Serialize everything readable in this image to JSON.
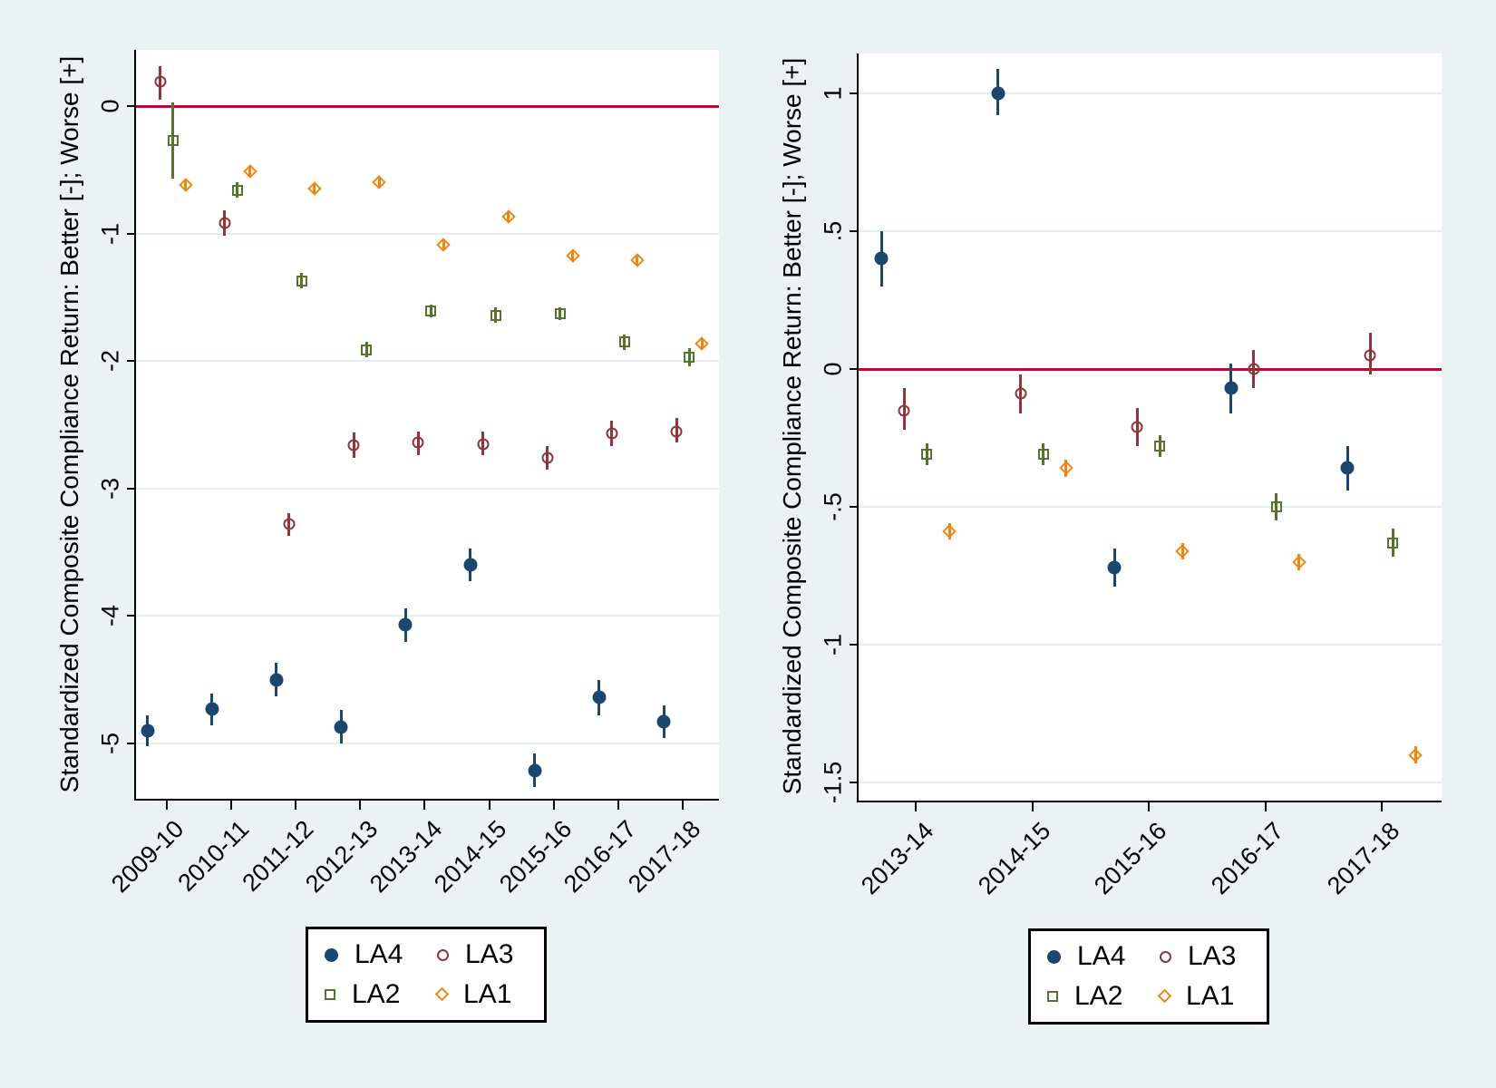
{
  "figure": {
    "background": "#eaf2f3",
    "plot_background": "#ffffff",
    "grid_color": "#e3eef1",
    "axis_color": "#000000",
    "zero_line_color": "#c10534"
  },
  "legend": {
    "items": [
      {
        "label": "LA4",
        "marker": "filled-circle",
        "color": "#1a476f"
      },
      {
        "label": "LA3",
        "marker": "open-circle",
        "color": "#90353b"
      },
      {
        "label": "LA2",
        "marker": "open-square",
        "color": "#55752f"
      },
      {
        "label": "LA1",
        "marker": "open-diamond",
        "color": "#ed8712"
      }
    ]
  },
  "chart_data": [
    {
      "type": "scatter",
      "panel": "left",
      "ylabel": "Standardized Composite Compliance Return: Better [-]; Worse [+]",
      "xlabel": "",
      "grid": true,
      "zero_line": 0,
      "ylim": [
        -5.45,
        0.45
      ],
      "yticks": [
        {
          "label": "0",
          "value": 0
        },
        {
          "label": "-1",
          "value": -1
        },
        {
          "label": "-2",
          "value": -2
        },
        {
          "label": "-3",
          "value": -3
        },
        {
          "label": "-4",
          "value": -4
        },
        {
          "label": "-5",
          "value": -5
        }
      ],
      "categories": [
        "2009-10",
        "2010-11",
        "2011-12",
        "2012-13",
        "2013-14",
        "2014-15",
        "2015-16",
        "2016-17",
        "2017-18"
      ],
      "series": [
        {
          "name": "LA4",
          "marker": "filled-circle",
          "color": "#1a476f",
          "values": [
            -4.9,
            -4.73,
            -4.5,
            -4.87,
            -4.07,
            -3.6,
            -5.21,
            -4.64,
            -4.83
          ],
          "ci_high": [
            -4.78,
            -4.61,
            -4.37,
            -4.74,
            -3.94,
            -3.47,
            -5.08,
            -4.5,
            -4.7
          ],
          "ci_low": [
            -5.02,
            -4.86,
            -4.63,
            -5.0,
            -4.2,
            -3.73,
            -5.34,
            -4.78,
            -4.96
          ]
        },
        {
          "name": "LA3",
          "marker": "open-circle",
          "color": "#90353b",
          "values": [
            0.19,
            -0.92,
            -3.28,
            -2.66,
            -2.64,
            -2.65,
            -2.76,
            -2.57,
            -2.55
          ],
          "ci_high": [
            0.31,
            -0.82,
            -3.19,
            -2.56,
            -2.55,
            -2.55,
            -2.67,
            -2.47,
            -2.45
          ],
          "ci_low": [
            0.05,
            -1.02,
            -3.37,
            -2.76,
            -2.74,
            -2.74,
            -2.85,
            -2.67,
            -2.64
          ]
        },
        {
          "name": "LA2",
          "marker": "open-square",
          "color": "#55752f",
          "values": [
            -0.27,
            -0.66,
            -1.37,
            -1.91,
            -1.61,
            -1.64,
            -1.63,
            -1.85,
            -1.97
          ],
          "ci_high": [
            0.03,
            -0.6,
            -1.31,
            -1.85,
            -1.56,
            -1.58,
            -1.58,
            -1.79,
            -1.9
          ],
          "ci_low": [
            -0.57,
            -0.72,
            -1.43,
            -1.97,
            -1.66,
            -1.7,
            -1.68,
            -1.91,
            -2.04
          ]
        },
        {
          "name": "LA1",
          "marker": "open-diamond",
          "color": "#ed8712",
          "values": [
            -0.62,
            -0.51,
            -0.65,
            -0.6,
            -1.09,
            -0.87,
            -1.17,
            -1.21,
            -1.86
          ],
          "ci_high": [
            -0.58,
            -0.47,
            -0.61,
            -0.56,
            -1.05,
            -0.83,
            -1.13,
            -1.17,
            -1.82
          ],
          "ci_low": [
            -0.66,
            -0.55,
            -0.69,
            -0.64,
            -1.13,
            -0.91,
            -1.21,
            -1.25,
            -1.9
          ]
        }
      ]
    },
    {
      "type": "scatter",
      "panel": "right",
      "ylabel": "Standardized Composite Compliance Return: Better [-]; Worse [+]",
      "xlabel": "",
      "grid": true,
      "zero_line": 0,
      "ylim": [
        -1.6,
        1.15
      ],
      "yticks": [
        {
          "label": "1",
          "value": 1
        },
        {
          "label": ".5",
          "value": 0.5
        },
        {
          "label": "0",
          "value": 0
        },
        {
          "label": "-.5",
          "value": -0.5
        },
        {
          "label": "-1",
          "value": -1
        },
        {
          "label": "-1.5",
          "value": -1.5
        }
      ],
      "categories": [
        "2013-14",
        "2014-15",
        "2015-16",
        "2016-17",
        "2017-18"
      ],
      "series": [
        {
          "name": "LA4",
          "marker": "filled-circle",
          "color": "#1a476f",
          "values": [
            0.4,
            1.0,
            -0.72,
            -0.07,
            -0.36
          ],
          "ci_high": [
            0.5,
            1.09,
            -0.65,
            0.02,
            -0.28
          ],
          "ci_low": [
            0.3,
            0.92,
            -0.79,
            -0.16,
            -0.44
          ]
        },
        {
          "name": "LA3",
          "marker": "open-circle",
          "color": "#90353b",
          "values": [
            -0.15,
            -0.09,
            -0.21,
            0.0,
            0.05
          ],
          "ci_high": [
            -0.07,
            -0.02,
            -0.14,
            0.07,
            0.13
          ],
          "ci_low": [
            -0.22,
            -0.16,
            -0.28,
            -0.07,
            -0.02
          ]
        },
        {
          "name": "LA2",
          "marker": "open-square",
          "color": "#55752f",
          "values": [
            -0.31,
            -0.31,
            -0.28,
            -0.5,
            -0.63
          ],
          "ci_high": [
            -0.27,
            -0.27,
            -0.24,
            -0.45,
            -0.58
          ],
          "ci_low": [
            -0.35,
            -0.35,
            -0.32,
            -0.55,
            -0.68
          ]
        },
        {
          "name": "LA1",
          "marker": "open-diamond",
          "color": "#ed8712",
          "values": [
            -0.59,
            -0.36,
            -0.66,
            -0.7,
            -1.4
          ],
          "ci_high": [
            -0.56,
            -0.33,
            -0.63,
            -0.67,
            -1.37
          ],
          "ci_low": [
            -0.62,
            -0.39,
            -0.69,
            -0.73,
            -1.43
          ]
        }
      ]
    }
  ]
}
